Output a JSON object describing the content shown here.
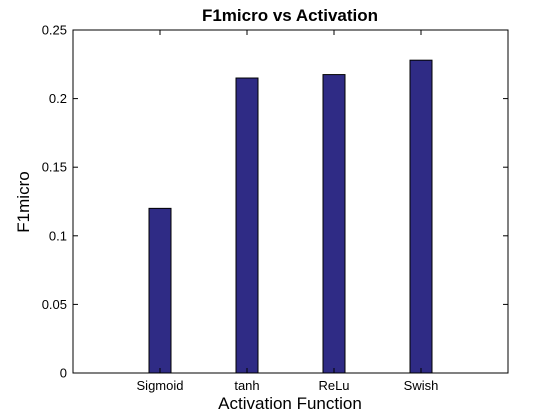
{
  "chart_data": {
    "type": "bar",
    "title": "F1micro vs Activation",
    "xlabel": "Activation Function",
    "ylabel": "F1micro",
    "categories": [
      "Sigmoid",
      "tanh",
      "ReLu",
      "Swish"
    ],
    "values": [
      0.12,
      0.215,
      0.2175,
      0.228
    ],
    "ylim": [
      0,
      0.25
    ],
    "yticks": [
      0,
      0.05,
      0.1,
      0.15,
      0.2,
      0.25
    ],
    "ytick_labels": [
      "0",
      "0.05",
      "0.1",
      "0.15",
      "0.2",
      "0.25"
    ],
    "bar_color": "#2f2b85",
    "grid": false,
    "legend": "none"
  }
}
